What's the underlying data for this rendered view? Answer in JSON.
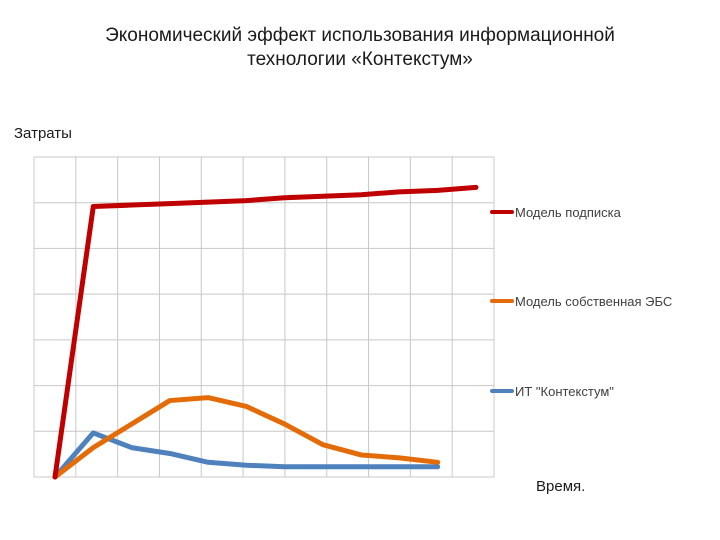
{
  "title": {
    "line1": "Экономический эффект использования информационной",
    "line2": "технологии «Контекстум»"
  },
  "chart_data": {
    "type": "line",
    "title": "Экономический эффект использования информационной технологии «Контекстум»",
    "ylabel": "Затраты",
    "xlabel": "Время.",
    "x": [
      0,
      1,
      2,
      3,
      4,
      5,
      6,
      7,
      8,
      9,
      10,
      11
    ],
    "xlim": [
      0,
      11
    ],
    "ylim": [
      0,
      100
    ],
    "grid": true,
    "legend_position": "right",
    "series": [
      {
        "name": "Модель подписка",
        "color": "#c00000",
        "values": [
          0,
          92,
          92.5,
          93,
          93.5,
          94,
          95,
          95.5,
          96,
          97,
          97.5,
          98.5
        ]
      },
      {
        "name": "Модель собственная ЭБС",
        "color": "#e36c09",
        "values": [
          0,
          10,
          18,
          26,
          27,
          24,
          18,
          11,
          7.5,
          6.5,
          5,
          null
        ]
      },
      {
        "name": "ИТ \"Контекстум\"",
        "color": "#4f81bd",
        "values": [
          0,
          15,
          10,
          8,
          5,
          4,
          3.5,
          3.5,
          3.5,
          3.5,
          3.5,
          null
        ]
      }
    ]
  }
}
